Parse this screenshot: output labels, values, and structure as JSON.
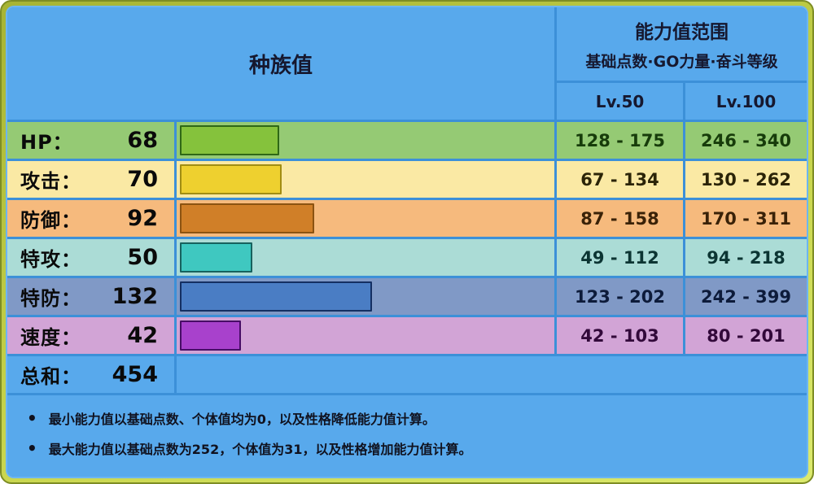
{
  "header": {
    "base_stats_title": "种族值",
    "range_title": "能力值范围",
    "range_subtitle": "基础点数·GO力量·奋斗等级",
    "lv50_label": "Lv.50",
    "lv100_label": "Lv.100"
  },
  "stats": {
    "max_value": 255,
    "rows": [
      {
        "key": "hp",
        "label": "HP：",
        "value": 68,
        "lv50": "128 - 175",
        "lv100": "246 - 340",
        "bg": "#95ca74",
        "fill": "#85c23c",
        "bar_border": "#2f6816",
        "text": "#173c0a"
      },
      {
        "key": "attack",
        "label": "攻击：",
        "value": 70,
        "lv50": "67 - 134",
        "lv100": "130 - 262",
        "bg": "#fae9a4",
        "fill": "#eed02f",
        "bar_border": "#a18d13",
        "text": "#2b2408"
      },
      {
        "key": "defense",
        "label": "防御：",
        "value": 92,
        "lv50": "87 - 158",
        "lv100": "170 - 311",
        "bg": "#f6ba7d",
        "fill": "#d07f28",
        "bar_border": "#8c5311",
        "text": "#3a2208"
      },
      {
        "key": "sp-attack",
        "label": "特攻：",
        "value": 50,
        "lv50": "49 - 112",
        "lv100": "94 - 218",
        "bg": "#abdcd6",
        "fill": "#3fc8c0",
        "bar_border": "#17625e",
        "text": "#0c3533"
      },
      {
        "key": "sp-defense",
        "label": "特防：",
        "value": 132,
        "lv50": "123 - 202",
        "lv100": "242 - 399",
        "bg": "#8099c6",
        "fill": "#4a7dc4",
        "bar_border": "#142f62",
        "text": "#0d1b3a"
      },
      {
        "key": "speed",
        "label": "速度：",
        "value": 42,
        "lv50": "42 - 103",
        "lv100": "80 - 201",
        "bg": "#d2a4d6",
        "fill": "#a841cc",
        "bar_border": "#470d66",
        "text": "#32093a"
      }
    ]
  },
  "total": {
    "label": "总和：",
    "value": 454
  },
  "footnotes": [
    "最小能力值以基础点数、个体值均为0，以及性格降低能力值计算。",
    "最大能力值以基础点数为252，个体值为31，以及性格增加能力值计算。"
  ],
  "colors": {
    "frame-outer": "#7e8d24",
    "frame-dark": "#a7b433",
    "frame-light": "#c9d64e",
    "frame-light2": "#dcea6e",
    "panel-edge": "#6cb5f2",
    "panel-blue": "#58a9ec",
    "grid-line": "#3c90d8",
    "header-text": "#16182f",
    "label-text": "#0a0a0a",
    "footer-text": "#10121f"
  },
  "chart_data": {
    "type": "bar",
    "orientation": "horizontal",
    "title": "种族值",
    "categories": [
      "HP",
      "攻击",
      "防御",
      "特攻",
      "特防",
      "速度"
    ],
    "values": [
      68,
      70,
      92,
      50,
      132,
      42
    ],
    "total": 454,
    "xlim": [
      0,
      255
    ],
    "bar_colors": [
      "#85c23c",
      "#eed02f",
      "#d07f28",
      "#3fc8c0",
      "#4a7dc4",
      "#a841cc"
    ],
    "series": [
      {
        "name": "Lv.50",
        "ranges": [
          [
            128,
            175
          ],
          [
            67,
            134
          ],
          [
            87,
            158
          ],
          [
            49,
            112
          ],
          [
            123,
            202
          ],
          [
            42,
            103
          ]
        ]
      },
      {
        "name": "Lv.100",
        "ranges": [
          [
            246,
            340
          ],
          [
            130,
            262
          ],
          [
            170,
            311
          ],
          [
            94,
            218
          ],
          [
            242,
            399
          ],
          [
            80,
            201
          ]
        ]
      }
    ],
    "notes": [
      "最小能力值以基础点数、个体值均为0，以及性格降低能力值计算。",
      "最大能力值以基础点数为252，个体值为31，以及性格增加能力值计算。"
    ]
  }
}
